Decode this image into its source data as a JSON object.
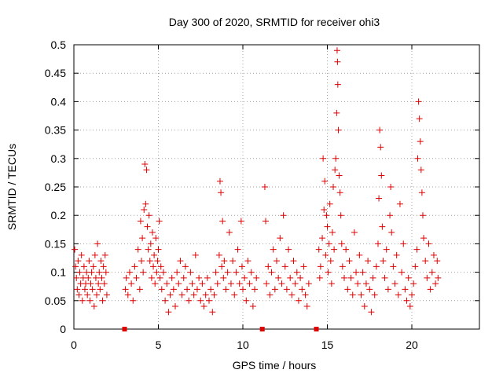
{
  "chart_data": {
    "type": "scatter",
    "title": "Day 300 of 2020, SRMTID for receiver ohi3",
    "xlabel": "GPS time / hours",
    "ylabel": "SRMTID / TECUs",
    "xlim": [
      0,
      24
    ],
    "ylim": [
      0,
      0.5
    ],
    "grid": true,
    "marker": "+",
    "xticks": [
      0,
      5,
      10,
      15,
      20
    ],
    "xtick_labels": [
      "0",
      "5",
      "10",
      "15",
      "20"
    ],
    "yticks": [
      0,
      0.05,
      0.1,
      0.15,
      0.2,
      0.25,
      0.3,
      0.35,
      0.4,
      0.45,
      0.5
    ],
    "ytick_labels": [
      "0",
      "0.05",
      "0.1",
      "0.15",
      "0.2",
      "0.25",
      "0.3",
      "0.35",
      "0.4",
      "0.45",
      "0.5"
    ],
    "series": [
      {
        "name": "SRMTID",
        "color": "#e00000",
        "points": [
          [
            0.05,
            0.14
          ],
          [
            0.1,
            0.11
          ],
          [
            0.15,
            0.09
          ],
          [
            0.2,
            0.07
          ],
          [
            0.25,
            0.12
          ],
          [
            0.3,
            0.06
          ],
          [
            0.35,
            0.1
          ],
          [
            0.4,
            0.08
          ],
          [
            0.45,
            0.13
          ],
          [
            0.5,
            0.05
          ],
          [
            0.55,
            0.09
          ],
          [
            0.6,
            0.11
          ],
          [
            0.65,
            0.07
          ],
          [
            0.7,
            0.08
          ],
          [
            0.75,
            0.1
          ],
          [
            0.8,
            0.06
          ],
          [
            0.85,
            0.09
          ],
          [
            0.9,
            0.12
          ],
          [
            0.95,
            0.05
          ],
          [
            1.0,
            0.08
          ],
          [
            1.05,
            0.1
          ],
          [
            1.1,
            0.07
          ],
          [
            1.15,
            0.11
          ],
          [
            1.2,
            0.04
          ],
          [
            1.25,
            0.13
          ],
          [
            1.3,
            0.09
          ],
          [
            1.35,
            0.06
          ],
          [
            1.4,
            0.15
          ],
          [
            1.45,
            0.08
          ],
          [
            1.5,
            0.1
          ],
          [
            1.55,
            0.07
          ],
          [
            1.6,
            0.12
          ],
          [
            1.65,
            0.09
          ],
          [
            1.7,
            0.05
          ],
          [
            1.75,
            0.11
          ],
          [
            1.8,
            0.08
          ],
          [
            1.85,
            0.13
          ],
          [
            1.9,
            0.1
          ],
          [
            1.95,
            0.06
          ],
          [
            3.05,
            0.07
          ],
          [
            3.1,
            0.09
          ],
          [
            3.2,
            0.06
          ],
          [
            3.3,
            0.1
          ],
          [
            3.4,
            0.08
          ],
          [
            3.5,
            0.05
          ],
          [
            3.6,
            0.11
          ],
          [
            3.7,
            0.09
          ],
          [
            3.8,
            0.14
          ],
          [
            3.9,
            0.07
          ],
          [
            3.95,
            0.19
          ],
          [
            4.0,
            0.12
          ],
          [
            4.05,
            0.16
          ],
          [
            4.1,
            0.1
          ],
          [
            4.15,
            0.21
          ],
          [
            4.2,
            0.29
          ],
          [
            4.25,
            0.22
          ],
          [
            4.3,
            0.28
          ],
          [
            4.35,
            0.18
          ],
          [
            4.4,
            0.14
          ],
          [
            4.45,
            0.2
          ],
          [
            4.5,
            0.12
          ],
          [
            4.55,
            0.15
          ],
          [
            4.6,
            0.09
          ],
          [
            4.65,
            0.17
          ],
          [
            4.7,
            0.11
          ],
          [
            4.75,
            0.13
          ],
          [
            4.8,
            0.08
          ],
          [
            4.85,
            0.16
          ],
          [
            4.9,
            0.1
          ],
          [
            4.95,
            0.12
          ],
          [
            5.0,
            0.14
          ],
          [
            5.05,
            0.19
          ],
          [
            5.1,
            0.09
          ],
          [
            5.15,
            0.11
          ],
          [
            5.2,
            0.07
          ],
          [
            5.3,
            0.1
          ],
          [
            5.4,
            0.05
          ],
          [
            5.5,
            0.08
          ],
          [
            5.6,
            0.03
          ],
          [
            5.7,
            0.06
          ],
          [
            5.8,
            0.09
          ],
          [
            5.9,
            0.07
          ],
          [
            6.0,
            0.04
          ],
          [
            6.1,
            0.1
          ],
          [
            6.2,
            0.08
          ],
          [
            6.3,
            0.12
          ],
          [
            6.4,
            0.06
          ],
          [
            6.5,
            0.09
          ],
          [
            6.6,
            0.11
          ],
          [
            6.7,
            0.07
          ],
          [
            6.8,
            0.05
          ],
          [
            6.9,
            0.1
          ],
          [
            7.0,
            0.08
          ],
          [
            7.1,
            0.06
          ],
          [
            7.2,
            0.13
          ],
          [
            7.3,
            0.07
          ],
          [
            7.4,
            0.09
          ],
          [
            7.5,
            0.05
          ],
          [
            7.6,
            0.08
          ],
          [
            7.7,
            0.04
          ],
          [
            7.8,
            0.06
          ],
          [
            7.9,
            0.09
          ],
          [
            8.0,
            0.05
          ],
          [
            8.1,
            0.07
          ],
          [
            8.2,
            0.03
          ],
          [
            8.3,
            0.06
          ],
          [
            8.4,
            0.1
          ],
          [
            8.5,
            0.08
          ],
          [
            8.6,
            0.13
          ],
          [
            8.65,
            0.26
          ],
          [
            8.7,
            0.24
          ],
          [
            8.75,
            0.11
          ],
          [
            8.8,
            0.19
          ],
          [
            8.85,
            0.09
          ],
          [
            8.9,
            0.12
          ],
          [
            9.0,
            0.07
          ],
          [
            9.1,
            0.1
          ],
          [
            9.2,
            0.17
          ],
          [
            9.3,
            0.08
          ],
          [
            9.4,
            0.12
          ],
          [
            9.5,
            0.06
          ],
          [
            9.6,
            0.1
          ],
          [
            9.7,
            0.14
          ],
          [
            9.8,
            0.08
          ],
          [
            9.9,
            0.19
          ],
          [
            9.95,
            0.11
          ],
          [
            10.0,
            0.07
          ],
          [
            10.1,
            0.09
          ],
          [
            10.2,
            0.05
          ],
          [
            10.3,
            0.12
          ],
          [
            10.4,
            0.08
          ],
          [
            10.5,
            0.1
          ],
          [
            10.6,
            0.04
          ],
          [
            10.7,
            0.07
          ],
          [
            10.8,
            0.09
          ],
          [
            11.3,
            0.25
          ],
          [
            11.35,
            0.19
          ],
          [
            11.4,
            0.08
          ],
          [
            11.5,
            0.11
          ],
          [
            11.6,
            0.06
          ],
          [
            11.7,
            0.1
          ],
          [
            11.8,
            0.14
          ],
          [
            11.9,
            0.07
          ],
          [
            12.0,
            0.12
          ],
          [
            12.1,
            0.09
          ],
          [
            12.2,
            0.16
          ],
          [
            12.3,
            0.08
          ],
          [
            12.4,
            0.2
          ],
          [
            12.5,
            0.11
          ],
          [
            12.6,
            0.07
          ],
          [
            12.7,
            0.14
          ],
          [
            12.8,
            0.09
          ],
          [
            12.9,
            0.06
          ],
          [
            13.0,
            0.12
          ],
          [
            13.1,
            0.08
          ],
          [
            13.2,
            0.1
          ],
          [
            13.3,
            0.05
          ],
          [
            13.4,
            0.09
          ],
          [
            13.5,
            0.07
          ],
          [
            13.6,
            0.11
          ],
          [
            13.7,
            0.06
          ],
          [
            13.8,
            0.04
          ],
          [
            13.9,
            0.08
          ],
          [
            14.5,
            0.14
          ],
          [
            14.55,
            0.09
          ],
          [
            14.6,
            0.11
          ],
          [
            14.7,
            0.16
          ],
          [
            14.75,
            0.3
          ],
          [
            14.8,
            0.21
          ],
          [
            14.85,
            0.26
          ],
          [
            14.9,
            0.13
          ],
          [
            14.95,
            0.2
          ],
          [
            15.0,
            0.18
          ],
          [
            15.05,
            0.1
          ],
          [
            15.1,
            0.15
          ],
          [
            15.15,
            0.22
          ],
          [
            15.2,
            0.12
          ],
          [
            15.25,
            0.08
          ],
          [
            15.3,
            0.17
          ],
          [
            15.35,
            0.25
          ],
          [
            15.4,
            0.14
          ],
          [
            15.45,
            0.28
          ],
          [
            15.5,
            0.3
          ],
          [
            15.55,
            0.38
          ],
          [
            15.58,
            0.49
          ],
          [
            15.6,
            0.47
          ],
          [
            15.62,
            0.43
          ],
          [
            15.65,
            0.35
          ],
          [
            15.7,
            0.27
          ],
          [
            15.75,
            0.24
          ],
          [
            15.8,
            0.2
          ],
          [
            15.85,
            0.15
          ],
          [
            15.9,
            0.11
          ],
          [
            16.0,
            0.09
          ],
          [
            16.1,
            0.14
          ],
          [
            16.2,
            0.07
          ],
          [
            16.3,
            0.12
          ],
          [
            16.4,
            0.09
          ],
          [
            16.5,
            0.06
          ],
          [
            16.6,
            0.17
          ],
          [
            16.7,
            0.1
          ],
          [
            16.8,
            0.08
          ],
          [
            16.9,
            0.13
          ],
          [
            17.0,
            0.06
          ],
          [
            17.1,
            0.1
          ],
          [
            17.2,
            0.04
          ],
          [
            17.3,
            0.08
          ],
          [
            17.4,
            0.12
          ],
          [
            17.5,
            0.07
          ],
          [
            17.6,
            0.03
          ],
          [
            17.7,
            0.09
          ],
          [
            17.8,
            0.06
          ],
          [
            17.9,
            0.11
          ],
          [
            18.0,
            0.15
          ],
          [
            18.05,
            0.23
          ],
          [
            18.1,
            0.35
          ],
          [
            18.15,
            0.32
          ],
          [
            18.2,
            0.27
          ],
          [
            18.25,
            0.18
          ],
          [
            18.3,
            0.12
          ],
          [
            18.4,
            0.09
          ],
          [
            18.5,
            0.14
          ],
          [
            18.6,
            0.07
          ],
          [
            18.7,
            0.2
          ],
          [
            18.75,
            0.25
          ],
          [
            18.8,
            0.17
          ],
          [
            18.9,
            0.11
          ],
          [
            19.0,
            0.08
          ],
          [
            19.1,
            0.13
          ],
          [
            19.2,
            0.06
          ],
          [
            19.3,
            0.22
          ],
          [
            19.4,
            0.1
          ],
          [
            19.5,
            0.15
          ],
          [
            19.6,
            0.07
          ],
          [
            19.7,
            0.05
          ],
          [
            19.8,
            0.09
          ],
          [
            19.9,
            0.04
          ],
          [
            20.0,
            0.06
          ],
          [
            20.1,
            0.08
          ],
          [
            20.2,
            0.11
          ],
          [
            20.3,
            0.14
          ],
          [
            20.35,
            0.3
          ],
          [
            20.4,
            0.4
          ],
          [
            20.45,
            0.37
          ],
          [
            20.5,
            0.33
          ],
          [
            20.55,
            0.28
          ],
          [
            20.6,
            0.24
          ],
          [
            20.65,
            0.2
          ],
          [
            20.7,
            0.16
          ],
          [
            20.8,
            0.12
          ],
          [
            20.9,
            0.09
          ],
          [
            21.0,
            0.15
          ],
          [
            21.1,
            0.07
          ],
          [
            21.2,
            0.1
          ],
          [
            21.3,
            0.13
          ],
          [
            21.4,
            0.08
          ],
          [
            21.5,
            0.12
          ],
          [
            21.55,
            0.09
          ]
        ]
      }
    ],
    "gap_markers": {
      "description": "small filled squares on the x-axis",
      "color": "#e00000",
      "x": [
        3.0,
        11.15,
        14.35
      ],
      "y": 0
    }
  }
}
